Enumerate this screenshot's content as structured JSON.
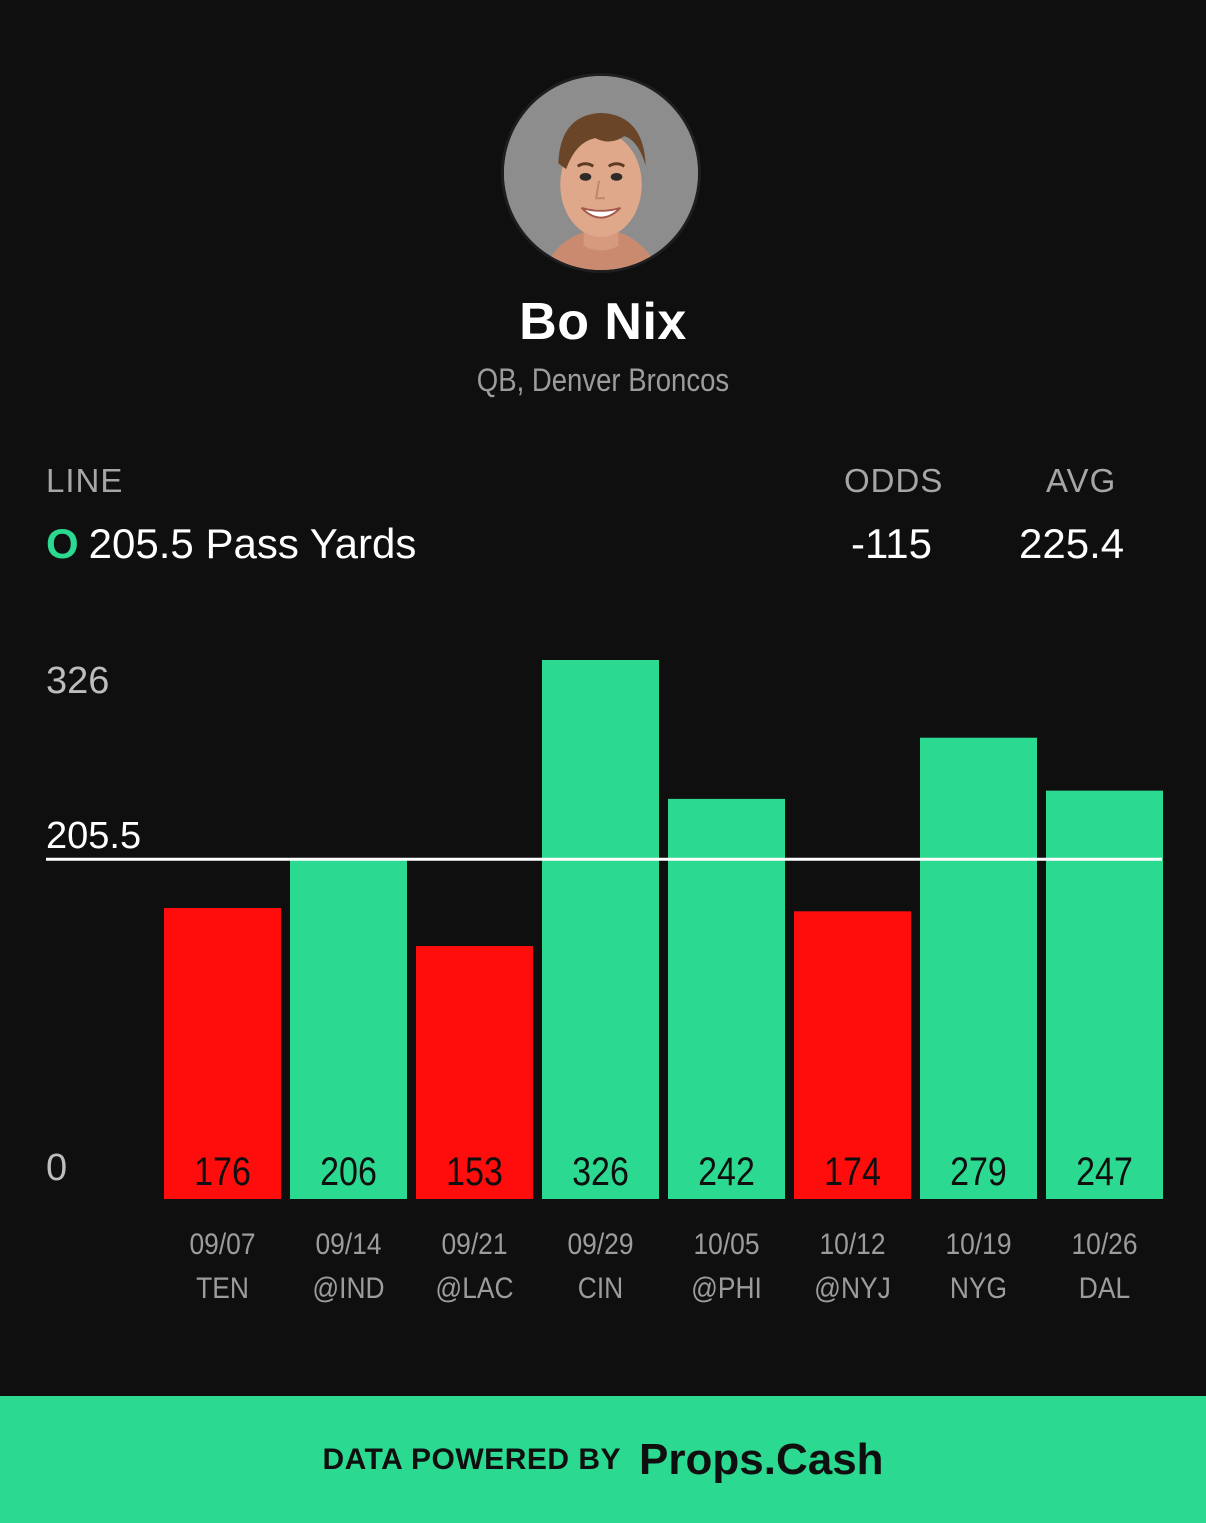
{
  "player": {
    "name": "Bo Nix",
    "subtitle": "QB, Denver Broncos"
  },
  "prop": {
    "line_label": "LINE",
    "over_under": "O",
    "line_text": "205.5 Pass Yards",
    "odds_label": "ODDS",
    "odds_value": "-115",
    "avg_label": "AVG",
    "avg_value": "225.4"
  },
  "colors": {
    "over": "#2bd990",
    "under": "#ff0d0d",
    "background": "#0f0f0f"
  },
  "chart_data": {
    "type": "bar",
    "ylim": [
      0,
      326
    ],
    "yticks": [
      "326",
      "205.5",
      "0"
    ],
    "threshold": 205.5,
    "categories": [
      "09/07",
      "09/14",
      "09/21",
      "09/29",
      "10/05",
      "10/12",
      "10/19",
      "10/26"
    ],
    "opponents": [
      "TEN",
      "@IND",
      "@LAC",
      "CIN",
      "@PHI",
      "@NYJ",
      "NYG",
      "DAL"
    ],
    "values": [
      176,
      206,
      153,
      326,
      242,
      174,
      279,
      247
    ]
  },
  "footer": {
    "powered_by": "DATA POWERED BY",
    "brand": "Props.Cash"
  }
}
